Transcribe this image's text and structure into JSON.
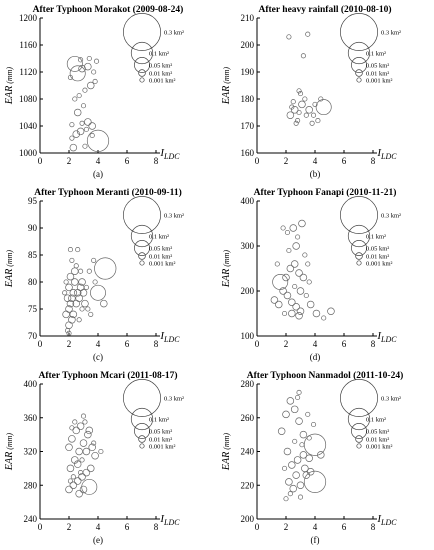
{
  "chart_data": [
    {
      "type": "scatter",
      "title": "After Typhoon Morakot (2009-08-24)",
      "ylabel": "EAR (mm)",
      "xlabel": "I_LDC",
      "sublabel": "(a)",
      "xlim": [
        0,
        8
      ],
      "ylim": [
        1000,
        1200
      ],
      "xticks": [
        0,
        2,
        4,
        6,
        8
      ],
      "yticks": [
        1000,
        1040,
        1080,
        1120,
        1160,
        1200
      ],
      "points": [
        [
          2.3,
          1008,
          0.01
        ],
        [
          2.2,
          1022,
          0.001
        ],
        [
          2.5,
          1028,
          0.01
        ],
        [
          2.8,
          1032,
          0.01
        ],
        [
          3.2,
          1035,
          0.001
        ],
        [
          3.6,
          1040,
          0.01
        ],
        [
          3.3,
          1046,
          0.01
        ],
        [
          2.9,
          1044,
          0.001
        ],
        [
          2.6,
          1060,
          0.01
        ],
        [
          2.4,
          1080,
          0.001
        ],
        [
          2.7,
          1085,
          0.001
        ],
        [
          3.1,
          1093,
          0.001
        ],
        [
          3.5,
          1100,
          0.01
        ],
        [
          3.8,
          1106,
          0.001
        ],
        [
          2.6,
          1118,
          0.05
        ],
        [
          2.9,
          1125,
          0.01
        ],
        [
          2.4,
          1132,
          0.05
        ],
        [
          3.3,
          1128,
          0.01
        ],
        [
          3.7,
          1120,
          0.001
        ],
        [
          3.4,
          1140,
          0.001
        ],
        [
          2.1,
          1112,
          0.001
        ],
        [
          3.9,
          1136,
          0.001
        ],
        [
          4.0,
          1018,
          0.1
        ],
        [
          3.1,
          1010,
          0.001
        ],
        [
          2.2,
          1042,
          0.001
        ],
        [
          3.0,
          1070,
          0.001
        ],
        [
          2.8,
          1138,
          0.001
        ],
        [
          3.6,
          1026,
          0.001
        ]
      ]
    },
    {
      "type": "scatter",
      "title": "After heavy rainfall (2010-08-10)",
      "ylabel": "EAR (mm)",
      "xlabel": "I_LDC",
      "sublabel": "(b)",
      "xlim": [
        0,
        8
      ],
      "ylim": [
        160,
        210
      ],
      "xticks": [
        0,
        2,
        4,
        6,
        8
      ],
      "yticks": [
        160,
        170,
        180,
        190,
        200,
        210
      ],
      "points": [
        [
          2.3,
          174,
          0.01
        ],
        [
          2.6,
          176,
          0.01
        ],
        [
          2.9,
          175,
          0.001
        ],
        [
          3.1,
          178,
          0.01
        ],
        [
          3.3,
          180,
          0.001
        ],
        [
          2.5,
          179,
          0.001
        ],
        [
          2.8,
          172,
          0.001
        ],
        [
          3.6,
          176,
          0.01
        ],
        [
          3.9,
          174,
          0.001
        ],
        [
          4.2,
          172,
          0.001
        ],
        [
          4.4,
          180,
          0.001
        ],
        [
          3.0,
          182,
          0.001
        ],
        [
          3.4,
          174,
          0.001
        ],
        [
          2.7,
          171,
          0.001
        ],
        [
          4.6,
          177,
          0.05
        ],
        [
          3.8,
          171,
          0.001
        ],
        [
          2.2,
          203,
          0.001
        ],
        [
          3.5,
          204,
          0.001
        ],
        [
          3.2,
          196,
          0.001
        ],
        [
          4.0,
          178,
          0.001
        ],
        [
          2.9,
          183,
          0.001
        ],
        [
          2.4,
          177,
          0.001
        ]
      ]
    },
    {
      "type": "scatter",
      "title": "After Typhoon Meranti (2010-09-11)",
      "ylabel": "EAR (mm)",
      "xlabel": "I_LDC",
      "sublabel": "(c)",
      "xlim": [
        0,
        8
      ],
      "ylim": [
        70,
        95
      ],
      "xticks": [
        0,
        2,
        4,
        6,
        8
      ],
      "yticks": [
        70,
        75,
        80,
        85,
        90,
        95
      ],
      "points": [
        [
          1.8,
          74,
          0.01
        ],
        [
          2.0,
          75,
          0.01
        ],
        [
          2.1,
          76,
          0.01
        ],
        [
          2.2,
          77,
          0.01
        ],
        [
          2.3,
          78,
          0.01
        ],
        [
          2.0,
          79,
          0.01
        ],
        [
          2.4,
          80,
          0.01
        ],
        [
          2.1,
          81,
          0.01
        ],
        [
          1.9,
          77,
          0.01
        ],
        [
          2.5,
          76,
          0.01
        ],
        [
          2.6,
          78,
          0.01
        ],
        [
          2.7,
          77,
          0.01
        ],
        [
          2.8,
          79,
          0.01
        ],
        [
          2.3,
          74,
          0.01
        ],
        [
          2.2,
          73,
          0.01
        ],
        [
          2.0,
          72,
          0.01
        ],
        [
          1.9,
          71,
          0.001
        ],
        [
          2.4,
          82,
          0.01
        ],
        [
          2.5,
          83,
          0.001
        ],
        [
          2.9,
          80,
          0.01
        ],
        [
          3.0,
          78,
          0.01
        ],
        [
          3.1,
          76,
          0.01
        ],
        [
          3.3,
          75,
          0.001
        ],
        [
          3.5,
          74,
          0.001
        ],
        [
          2.1,
          86,
          0.001
        ],
        [
          2.6,
          86,
          0.001
        ],
        [
          3.4,
          82,
          0.001
        ],
        [
          3.7,
          84,
          0.001
        ],
        [
          4.0,
          78,
          0.05
        ],
        [
          4.5,
          82.5,
          0.1
        ],
        [
          4.4,
          76,
          0.01
        ],
        [
          3.8,
          80,
          0.001
        ],
        [
          2.2,
          84,
          0.001
        ],
        [
          1.8,
          80,
          0.001
        ],
        [
          2.7,
          73,
          0.001
        ],
        [
          2.9,
          75,
          0.001
        ],
        [
          3.2,
          79,
          0.001
        ],
        [
          2.0,
          70.5,
          0.001
        ],
        [
          1.7,
          78,
          0.001
        ],
        [
          2.8,
          82,
          0.001
        ]
      ]
    },
    {
      "type": "scatter",
      "title": "After Typhoon Fanapi (2010-11-21)",
      "ylabel": "EAR (mm)",
      "xlabel": "I_LDC",
      "sublabel": "(d)",
      "xlim": [
        0,
        8
      ],
      "ylim": [
        100,
        400
      ],
      "xticks": [
        0,
        2,
        4,
        6,
        8
      ],
      "yticks": [
        100,
        200,
        300,
        400
      ],
      "points": [
        [
          1.2,
          180,
          0.01
        ],
        [
          1.5,
          170,
          0.01
        ],
        [
          1.8,
          200,
          0.01
        ],
        [
          2.1,
          190,
          0.01
        ],
        [
          2.4,
          175,
          0.01
        ],
        [
          2.7,
          165,
          0.01
        ],
        [
          3.0,
          155,
          0.01
        ],
        [
          1.6,
          220,
          0.05
        ],
        [
          2.0,
          230,
          0.01
        ],
        [
          2.3,
          250,
          0.01
        ],
        [
          2.6,
          260,
          0.01
        ],
        [
          2.9,
          240,
          0.01
        ],
        [
          3.2,
          230,
          0.01
        ],
        [
          3.5,
          260,
          0.001
        ],
        [
          2.1,
          330,
          0.001
        ],
        [
          2.5,
          340,
          0.01
        ],
        [
          2.8,
          320,
          0.001
        ],
        [
          3.1,
          350,
          0.01
        ],
        [
          1.8,
          340,
          0.001
        ],
        [
          2.2,
          290,
          0.001
        ],
        [
          2.7,
          300,
          0.01
        ],
        [
          3.3,
          280,
          0.001
        ],
        [
          3.0,
          200,
          0.01
        ],
        [
          3.4,
          190,
          0.001
        ],
        [
          3.7,
          170,
          0.01
        ],
        [
          4.1,
          150,
          0.01
        ],
        [
          4.6,
          140,
          0.001
        ],
        [
          5.1,
          155,
          0.01
        ],
        [
          1.4,
          260,
          0.001
        ],
        [
          2.4,
          150,
          0.01
        ],
        [
          2.9,
          145,
          0.01
        ],
        [
          3.6,
          220,
          0.001
        ],
        [
          1.9,
          150,
          0.001
        ],
        [
          2.6,
          210,
          0.001
        ]
      ]
    },
    {
      "type": "scatter",
      "title": "After Typhoon Mcari (2011-08-17)",
      "ylabel": "EAR (mm)",
      "xlabel": "I_LDC",
      "sublabel": "(e)",
      "xlim": [
        0,
        8
      ],
      "ylim": [
        240,
        400
      ],
      "xticks": [
        0,
        2,
        4,
        6,
        8
      ],
      "yticks": [
        240,
        280,
        320,
        360,
        400
      ],
      "points": [
        [
          2.0,
          275,
          0.01
        ],
        [
          2.3,
          280,
          0.01
        ],
        [
          2.6,
          285,
          0.01
        ],
        [
          2.9,
          290,
          0.01
        ],
        [
          3.2,
          295,
          0.01
        ],
        [
          3.5,
          300,
          0.01
        ],
        [
          2.1,
          300,
          0.01
        ],
        [
          2.4,
          310,
          0.01
        ],
        [
          2.7,
          320,
          0.01
        ],
        [
          3.0,
          330,
          0.01
        ],
        [
          3.3,
          340,
          0.01
        ],
        [
          2.2,
          335,
          0.01
        ],
        [
          2.5,
          345,
          0.01
        ],
        [
          2.8,
          350,
          0.01
        ],
        [
          3.1,
          355,
          0.001
        ],
        [
          3.4,
          345,
          0.01
        ],
        [
          3.6,
          325,
          0.01
        ],
        [
          3.8,
          315,
          0.01
        ],
        [
          2.0,
          325,
          0.01
        ],
        [
          2.6,
          305,
          0.01
        ],
        [
          3.0,
          275,
          0.01
        ],
        [
          3.4,
          278,
          0.05
        ],
        [
          2.3,
          290,
          0.001
        ],
        [
          2.9,
          310,
          0.001
        ],
        [
          3.2,
          320,
          0.01
        ],
        [
          2.1,
          285,
          0.001
        ],
        [
          2.7,
          270,
          0.01
        ],
        [
          3.7,
          330,
          0.001
        ],
        [
          4.2,
          320,
          0.001
        ],
        [
          2.4,
          355,
          0.001
        ],
        [
          3.0,
          362,
          0.001
        ],
        [
          2.2,
          348,
          0.001
        ],
        [
          2.8,
          295,
          0.001
        ]
      ]
    },
    {
      "type": "scatter",
      "title": "After Typhoon Nanmadol (2011-10-24)",
      "ylabel": "EAR (mm)",
      "xlabel": "I_LDC",
      "sublabel": "(f)",
      "xlim": [
        0,
        8
      ],
      "ylim": [
        200,
        280
      ],
      "xticks": [
        0,
        2,
        4,
        6,
        8
      ],
      "yticks": [
        200,
        220,
        240,
        260,
        280
      ],
      "points": [
        [
          1.7,
          252,
          0.01
        ],
        [
          2.0,
          262,
          0.01
        ],
        [
          2.3,
          270,
          0.01
        ],
        [
          2.6,
          265,
          0.01
        ],
        [
          2.9,
          258,
          0.01
        ],
        [
          3.2,
          250,
          0.01
        ],
        [
          2.1,
          240,
          0.01
        ],
        [
          2.4,
          232,
          0.01
        ],
        [
          2.7,
          226,
          0.01
        ],
        [
          3.0,
          220,
          0.01
        ],
        [
          3.3,
          230,
          0.01
        ],
        [
          3.6,
          236,
          0.01
        ],
        [
          2.2,
          222,
          0.01
        ],
        [
          2.5,
          218,
          0.01
        ],
        [
          2.8,
          235,
          0.01
        ],
        [
          3.1,
          244,
          0.001
        ],
        [
          3.4,
          226,
          0.01
        ],
        [
          3.7,
          228,
          0.01
        ],
        [
          4.0,
          222,
          0.1
        ],
        [
          4.0,
          244,
          0.1
        ],
        [
          4.4,
          238,
          0.01
        ],
        [
          2.9,
          275,
          0.001
        ],
        [
          3.5,
          262,
          0.001
        ],
        [
          3.9,
          256,
          0.001
        ],
        [
          1.9,
          230,
          0.001
        ],
        [
          2.6,
          246,
          0.001
        ],
        [
          3.2,
          238,
          0.01
        ],
        [
          2.3,
          215,
          0.001
        ],
        [
          3.0,
          213,
          0.001
        ],
        [
          3.6,
          248,
          0.001
        ],
        [
          2.0,
          212,
          0.001
        ],
        [
          2.8,
          272,
          0.001
        ]
      ]
    }
  ],
  "legend": {
    "entries": [
      "0.3 km²",
      "0.1 km²",
      "0.05 km²",
      "0.01 km²",
      "0.001 km²"
    ],
    "areas": [
      0.3,
      0.1,
      0.05,
      0.01,
      0.001
    ]
  }
}
